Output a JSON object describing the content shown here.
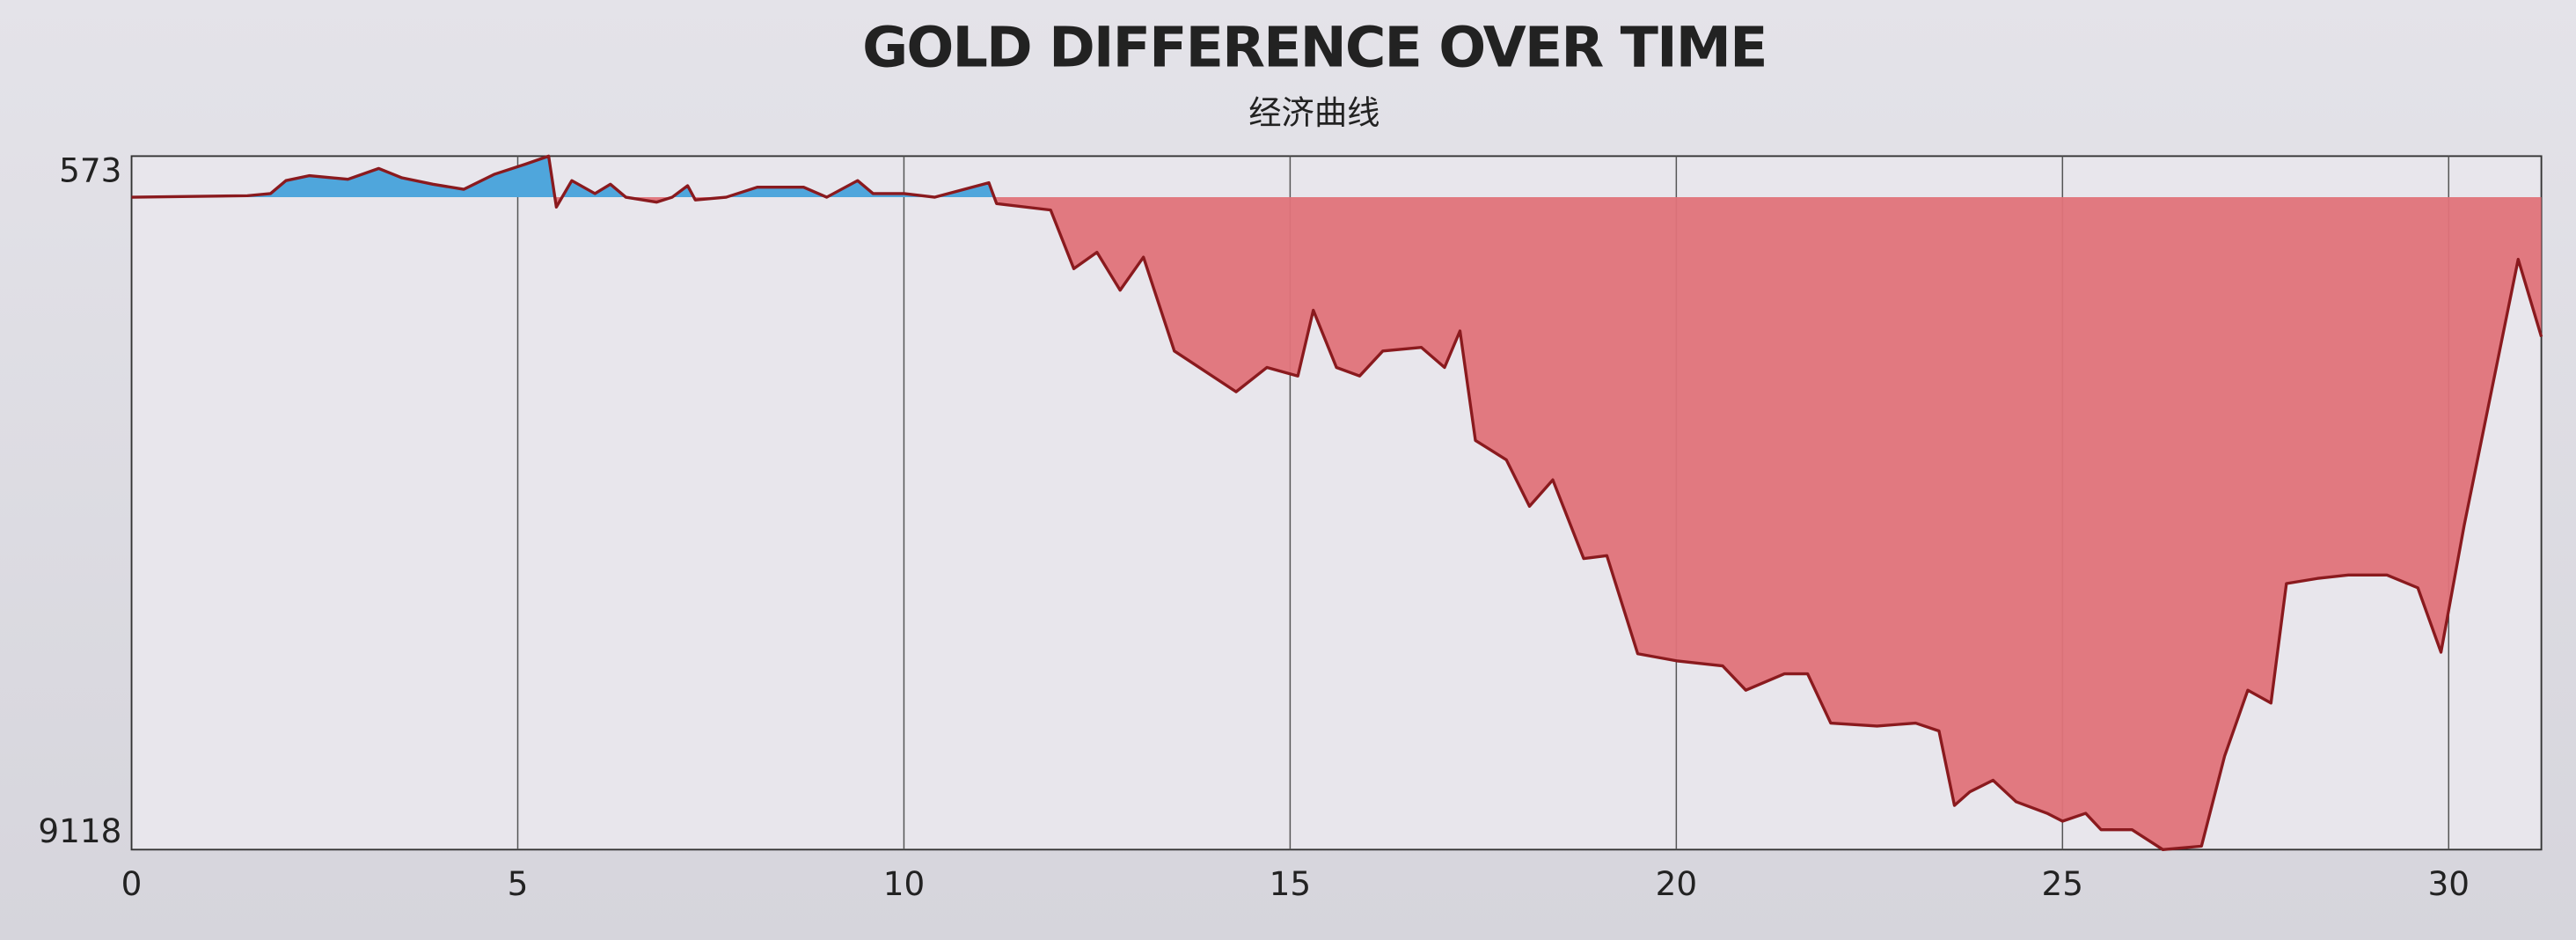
{
  "chart_data": {
    "type": "area",
    "title": "GOLD DIFFERENCE OVER TIME",
    "subtitle": "经济曲线",
    "x": [
      0,
      1.5,
      1.8,
      2.0,
      2.3,
      2.8,
      3.2,
      3.5,
      3.9,
      4.3,
      4.7,
      5.1,
      5.4,
      5.5,
      5.7,
      6.0,
      6.2,
      6.4,
      6.8,
      7.0,
      7.2,
      7.3,
      7.7,
      8.1,
      8.7,
      9.0,
      9.4,
      9.6,
      10.0,
      10.4,
      11.1,
      11.2,
      11.9,
      12.2,
      12.5,
      12.8,
      13.1,
      13.5,
      14.3,
      14.7,
      15.1,
      15.3,
      15.6,
      15.9,
      16.2,
      16.7,
      17.0,
      17.2,
      17.4,
      17.8,
      18.1,
      18.4,
      18.8,
      19.1,
      19.5,
      20.0,
      20.6,
      20.9,
      21.4,
      21.7,
      22.0,
      22.6,
      23.1,
      23.4,
      23.6,
      23.8,
      24.1,
      24.4,
      24.8,
      25.0,
      25.3,
      25.5,
      25.9,
      26.3,
      26.8,
      27.1,
      27.4,
      27.7,
      27.9,
      28.3,
      28.7,
      29.2,
      29.6,
      29.9,
      30.2,
      30.9,
      31.2
    ],
    "values": [
      0,
      20,
      50,
      230,
      300,
      250,
      400,
      270,
      180,
      110,
      320,
      460,
      573,
      -140,
      230,
      50,
      180,
      0,
      -70,
      0,
      160,
      -40,
      0,
      140,
      140,
      0,
      230,
      50,
      50,
      0,
      200,
      -90,
      -180,
      -1000,
      -770,
      -1300,
      -840,
      -2150,
      -2720,
      -2380,
      -2500,
      -1580,
      -2380,
      -2500,
      -2150,
      -2100,
      -2380,
      -1870,
      -3400,
      -3670,
      -4320,
      -3950,
      -5050,
      -5010,
      -6380,
      -6480,
      -6550,
      -6890,
      -6660,
      -6660,
      -7350,
      -7390,
      -7350,
      -7460,
      -8500,
      -8310,
      -8150,
      -8450,
      -8610,
      -8720,
      -8610,
      -8840,
      -8840,
      -9118,
      -9070,
      -7810,
      -6890,
      -7070,
      -5400,
      -5330,
      -5280,
      -5280,
      -5460,
      -6360,
      -4590,
      -870,
      -1950
    ],
    "positive_color": "#4fa6dc",
    "negative_color": "#e0737a",
    "line_color": "#8a1a1e",
    "xlim": [
      0,
      31.2
    ],
    "xticks": [
      0,
      5,
      10,
      15,
      20,
      25,
      30
    ],
    "ylim": [
      -9118,
      573
    ],
    "yticks": [
      {
        "value": -9118,
        "label": "9118"
      },
      573
    ],
    "grid": true
  }
}
